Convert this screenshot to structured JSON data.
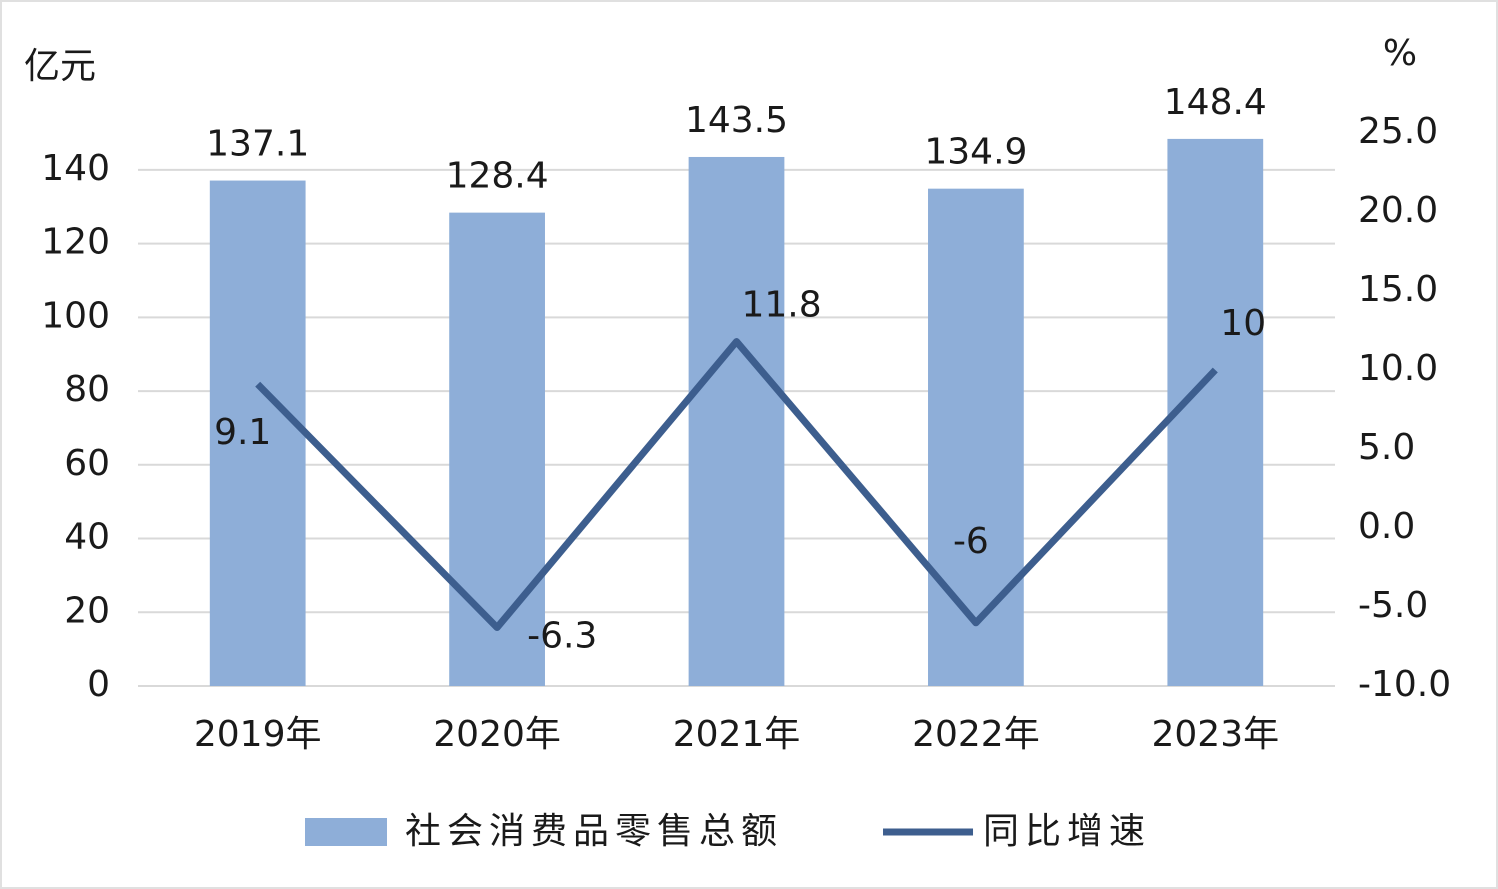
{
  "chart_data": {
    "type": "bar-line",
    "y_label": "亿元",
    "y2_label": "%",
    "categories": [
      "2019年",
      "2020年",
      "2021年",
      "2022年",
      "2023年"
    ],
    "series": [
      {
        "name": "社会消费品零售总额",
        "type": "bar",
        "color": "#8eaed8",
        "values": [
          137.1,
          128.4,
          143.5,
          134.9,
          148.4
        ]
      },
      {
        "name": "同比增速",
        "type": "line",
        "axis": "y2",
        "color": "#3d5e8e",
        "values": [
          9.1,
          -6.3,
          11.8,
          -6,
          10
        ]
      }
    ],
    "ylim": [
      0,
      150
    ],
    "yticks": [
      0,
      20,
      40,
      60,
      80,
      100,
      120,
      140
    ],
    "y2lim": [
      -10,
      25
    ],
    "y2ticks": [
      {
        "value": -10,
        "label": "-10.0"
      },
      {
        "value": -5,
        "label": "-5.0"
      },
      {
        "value": 0,
        "label": "0.0"
      },
      {
        "value": 5,
        "label": "5.0"
      },
      {
        "value": 10,
        "label": "10.0"
      },
      {
        "value": 15,
        "label": "15.0"
      },
      {
        "value": 20,
        "label": "20.0"
      },
      {
        "value": 25,
        "label": "25.0"
      }
    ],
    "grid": true,
    "legend": "bottom"
  }
}
